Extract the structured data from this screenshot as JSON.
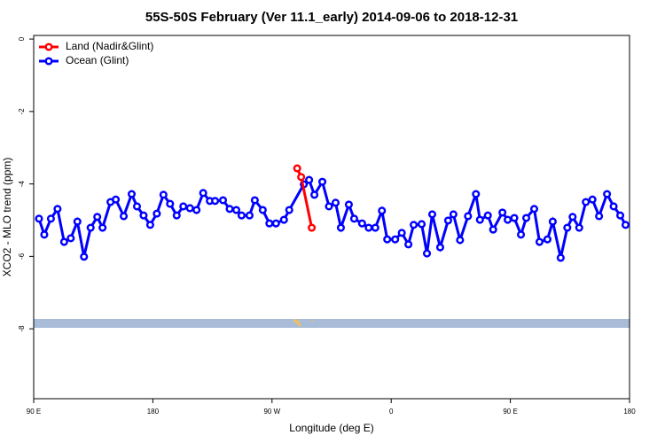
{
  "chart_data": {
    "type": "line",
    "title": "55S-50S February (Ver 11.1_early)   2014-09-06 to 2018-12-31",
    "x_label": "Longitude (deg E)",
    "y_label": "XCO2 - MLO trend (ppm)",
    "xlim": [
      90,
      540
    ],
    "ylim": [
      -9.93,
      0.1
    ],
    "xticks": [
      {
        "value": 90,
        "label": "90 E"
      },
      {
        "value": 180,
        "label": "180"
      },
      {
        "value": 270,
        "label": "90 W"
      },
      {
        "value": 360,
        "label": "0"
      },
      {
        "value": 450,
        "label": "90 E"
      },
      {
        "value": 540,
        "label": "180"
      }
    ],
    "yticks": [
      0,
      -2,
      -4,
      -6,
      -8
    ],
    "legend": "top-left",
    "series": [
      {
        "name": "Land (Nadir&Glint)",
        "color": "#ff0000",
        "x": [
          289,
          292,
          300
        ],
        "values": [
          -3.57,
          -3.81,
          -5.21
        ]
      },
      {
        "name": "Ocean (Glint)",
        "color": "#0000ff",
        "x": [
          94,
          98,
          103,
          108,
          113,
          118,
          123,
          128,
          133,
          138,
          142,
          148,
          152,
          158,
          164,
          168,
          173,
          178,
          183,
          188,
          193,
          198,
          203,
          208,
          213,
          218,
          223,
          227,
          233,
          238,
          243,
          247,
          253,
          257,
          263,
          268,
          273,
          279,
          283,
          294,
          298,
          302,
          308,
          313,
          318,
          322,
          328,
          332,
          338,
          343,
          348,
          353,
          357,
          363,
          368,
          373,
          377,
          383,
          387,
          391,
          397,
          403,
          407,
          412,
          418,
          424,
          427,
          433,
          437,
          444,
          448,
          453,
          458,
          462,
          468,
          472,
          478,
          482,
          488,
          493,
          497,
          502,
          507,
          512,
          517,
          523,
          528,
          533,
          537
        ],
        "values": [
          -4.96,
          -5.4,
          -4.96,
          -4.69,
          -5.6,
          -5.5,
          -5.04,
          -6.01,
          -5.21,
          -4.91,
          -5.21,
          -4.5,
          -4.43,
          -4.89,
          -4.28,
          -4.62,
          -4.87,
          -5.13,
          -4.82,
          -4.3,
          -4.55,
          -4.87,
          -4.62,
          -4.67,
          -4.72,
          -4.25,
          -4.47,
          -4.47,
          -4.45,
          -4.69,
          -4.72,
          -4.87,
          -4.87,
          -4.45,
          -4.72,
          -5.09,
          -5.09,
          -4.99,
          -4.72,
          -4.01,
          -3.89,
          -4.3,
          -3.94,
          -4.62,
          -4.52,
          -5.21,
          -4.57,
          -4.96,
          -5.09,
          -5.21,
          -5.21,
          -4.74,
          -5.53,
          -5.53,
          -5.35,
          -5.67,
          -5.13,
          -5.11,
          -5.92,
          -4.84,
          -5.75,
          -5.01,
          -4.84,
          -5.55,
          -4.89,
          -4.28,
          -4.99,
          -4.87,
          -5.26,
          -4.79,
          -4.99,
          -4.94,
          -5.4,
          -4.94,
          -4.69,
          -5.6,
          -5.53,
          -5.04,
          -6.04,
          -5.21,
          -4.91,
          -5.21,
          -4.5,
          -4.43,
          -4.89,
          -4.28,
          -4.62,
          -4.87,
          -5.13
        ]
      }
    ]
  }
}
